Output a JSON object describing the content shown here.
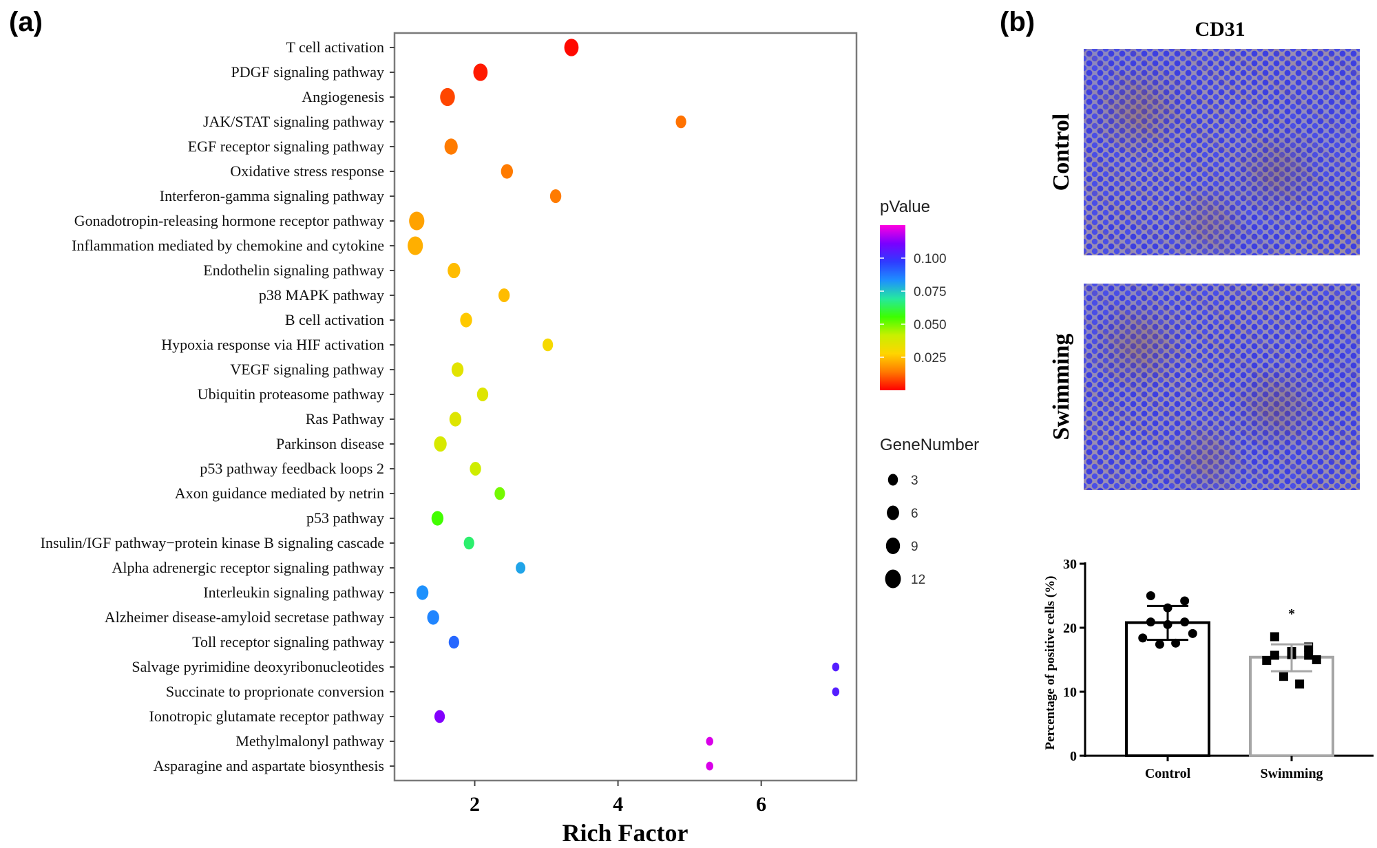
{
  "panels": {
    "a_label": "(a)",
    "b_label": "(b)"
  },
  "chart_data": [
    {
      "type": "scatter",
      "subtype": "bubble",
      "title": "",
      "xlabel": "Rich Factor",
      "ylabel": "",
      "xlim": [
        0.88,
        7.33
      ],
      "xticks": [
        2,
        4,
        6
      ],
      "grid": false,
      "legend_placement": "right",
      "color_legend": {
        "title": "pValue",
        "ticks": [
          0.1,
          0.075,
          0.05,
          0.025
        ],
        "tick_labels": [
          "0.100",
          "0.075",
          "0.050",
          "0.025"
        ],
        "range": [
          0.0,
          0.125
        ],
        "colors": [
          "#ff0000",
          "#ff7a00",
          "#ffd500",
          "#c8f000",
          "#3cff00",
          "#25e8a0",
          "#1e8fff",
          "#2f3bff",
          "#7a00ff",
          "#ff00e0"
        ]
      },
      "size_legend": {
        "title": "GeneNumber",
        "values": [
          3,
          6,
          9,
          12
        ],
        "labels": [
          "3",
          "6",
          "9",
          "12"
        ]
      },
      "categories": [
        "T cell activation",
        "PDGF signaling pathway",
        "Angiogenesis",
        "JAK/STAT signaling pathway",
        "EGF receptor signaling pathway",
        "Oxidative stress response",
        "Interferon-gamma signaling pathway",
        "Gonadotropin-releasing hormone receptor pathway",
        "Inflammation mediated by chemokine and cytokine",
        "Endothelin signaling pathway",
        "p38 MAPK pathway",
        "B cell activation",
        "Hypoxia response via HIF activation",
        "VEGF signaling pathway",
        "Ubiquitin proteasome pathway",
        "Ras Pathway",
        "Parkinson disease",
        "p53 pathway feedback loops 2",
        "Axon guidance mediated by netrin",
        "p53 pathway",
        "Insulin/IGF pathway−protein kinase B signaling cascade",
        "Alpha adrenergic receptor signaling pathway",
        "Interleukin signaling pathway",
        "Alzheimer disease-amyloid secretase pathway",
        "Toll receptor signaling pathway",
        "Salvage pyrimidine deoxyribonucleotides",
        "Succinate to proprionate conversion",
        "Ionotropic glutamate receptor pathway",
        "Methylmalonyl pathway",
        "Asparagine and aspartate biosynthesis"
      ],
      "points": [
        {
          "rich_factor": 3.35,
          "pvalue": 0.001,
          "gene_number": 10
        },
        {
          "rich_factor": 2.08,
          "pvalue": 0.003,
          "gene_number": 10
        },
        {
          "rich_factor": 1.62,
          "pvalue": 0.008,
          "gene_number": 11
        },
        {
          "rich_factor": 4.88,
          "pvalue": 0.013,
          "gene_number": 4
        },
        {
          "rich_factor": 1.67,
          "pvalue": 0.014,
          "gene_number": 8
        },
        {
          "rich_factor": 2.45,
          "pvalue": 0.014,
          "gene_number": 6
        },
        {
          "rich_factor": 3.13,
          "pvalue": 0.014,
          "gene_number": 5
        },
        {
          "rich_factor": 1.19,
          "pvalue": 0.02,
          "gene_number": 12
        },
        {
          "rich_factor": 1.17,
          "pvalue": 0.022,
          "gene_number": 12
        },
        {
          "rich_factor": 1.71,
          "pvalue": 0.024,
          "gene_number": 7
        },
        {
          "rich_factor": 2.41,
          "pvalue": 0.024,
          "gene_number": 5
        },
        {
          "rich_factor": 1.88,
          "pvalue": 0.026,
          "gene_number": 6
        },
        {
          "rich_factor": 3.02,
          "pvalue": 0.03,
          "gene_number": 4
        },
        {
          "rich_factor": 1.76,
          "pvalue": 0.035,
          "gene_number": 6
        },
        {
          "rich_factor": 2.11,
          "pvalue": 0.036,
          "gene_number": 5
        },
        {
          "rich_factor": 1.73,
          "pvalue": 0.036,
          "gene_number": 6
        },
        {
          "rich_factor": 1.52,
          "pvalue": 0.038,
          "gene_number": 7
        },
        {
          "rich_factor": 2.01,
          "pvalue": 0.04,
          "gene_number": 5
        },
        {
          "rich_factor": 2.35,
          "pvalue": 0.05,
          "gene_number": 4
        },
        {
          "rich_factor": 1.48,
          "pvalue": 0.055,
          "gene_number": 6
        },
        {
          "rich_factor": 1.92,
          "pvalue": 0.065,
          "gene_number": 4
        },
        {
          "rich_factor": 2.64,
          "pvalue": 0.08,
          "gene_number": 3
        },
        {
          "rich_factor": 1.27,
          "pvalue": 0.083,
          "gene_number": 6
        },
        {
          "rich_factor": 1.42,
          "pvalue": 0.085,
          "gene_number": 6
        },
        {
          "rich_factor": 1.71,
          "pvalue": 0.09,
          "gene_number": 4
        },
        {
          "rich_factor": 7.04,
          "pvalue": 0.104,
          "gene_number": 1
        },
        {
          "rich_factor": 7.04,
          "pvalue": 0.104,
          "gene_number": 1
        },
        {
          "rich_factor": 1.51,
          "pvalue": 0.112,
          "gene_number": 4
        },
        {
          "rich_factor": 5.28,
          "pvalue": 0.121,
          "gene_number": 1
        },
        {
          "rich_factor": 5.28,
          "pvalue": 0.121,
          "gene_number": 1
        }
      ]
    },
    {
      "type": "bar",
      "title": "",
      "xlabel": "",
      "ylabel": "Percentage of positive cells (%)",
      "ylim": [
        0,
        30
      ],
      "yticks": [
        0,
        10,
        20,
        30
      ],
      "grid": false,
      "categories": [
        "Control",
        "Swimming"
      ],
      "values": [
        20.8,
        15.4
      ],
      "error_low": [
        18.1,
        13.2
      ],
      "error_high": [
        23.4,
        17.4
      ],
      "bar_colors": [
        "#000000",
        "#a6a6a6"
      ],
      "significance": [
        "",
        "*"
      ],
      "individual_points": [
        {
          "marker": "circle",
          "values": [
            25.0,
            24.2,
            23.1,
            20.9,
            20.9,
            20.5,
            19.1,
            18.4,
            17.4,
            17.6
          ]
        },
        {
          "marker": "square",
          "values": [
            18.6,
            17.0,
            16.3,
            15.7,
            15.7,
            15.8,
            15.0,
            14.9,
            12.4,
            11.2
          ]
        }
      ]
    }
  ],
  "micrographs": {
    "title": "CD31",
    "rows": [
      "Control",
      "Swimming"
    ]
  }
}
